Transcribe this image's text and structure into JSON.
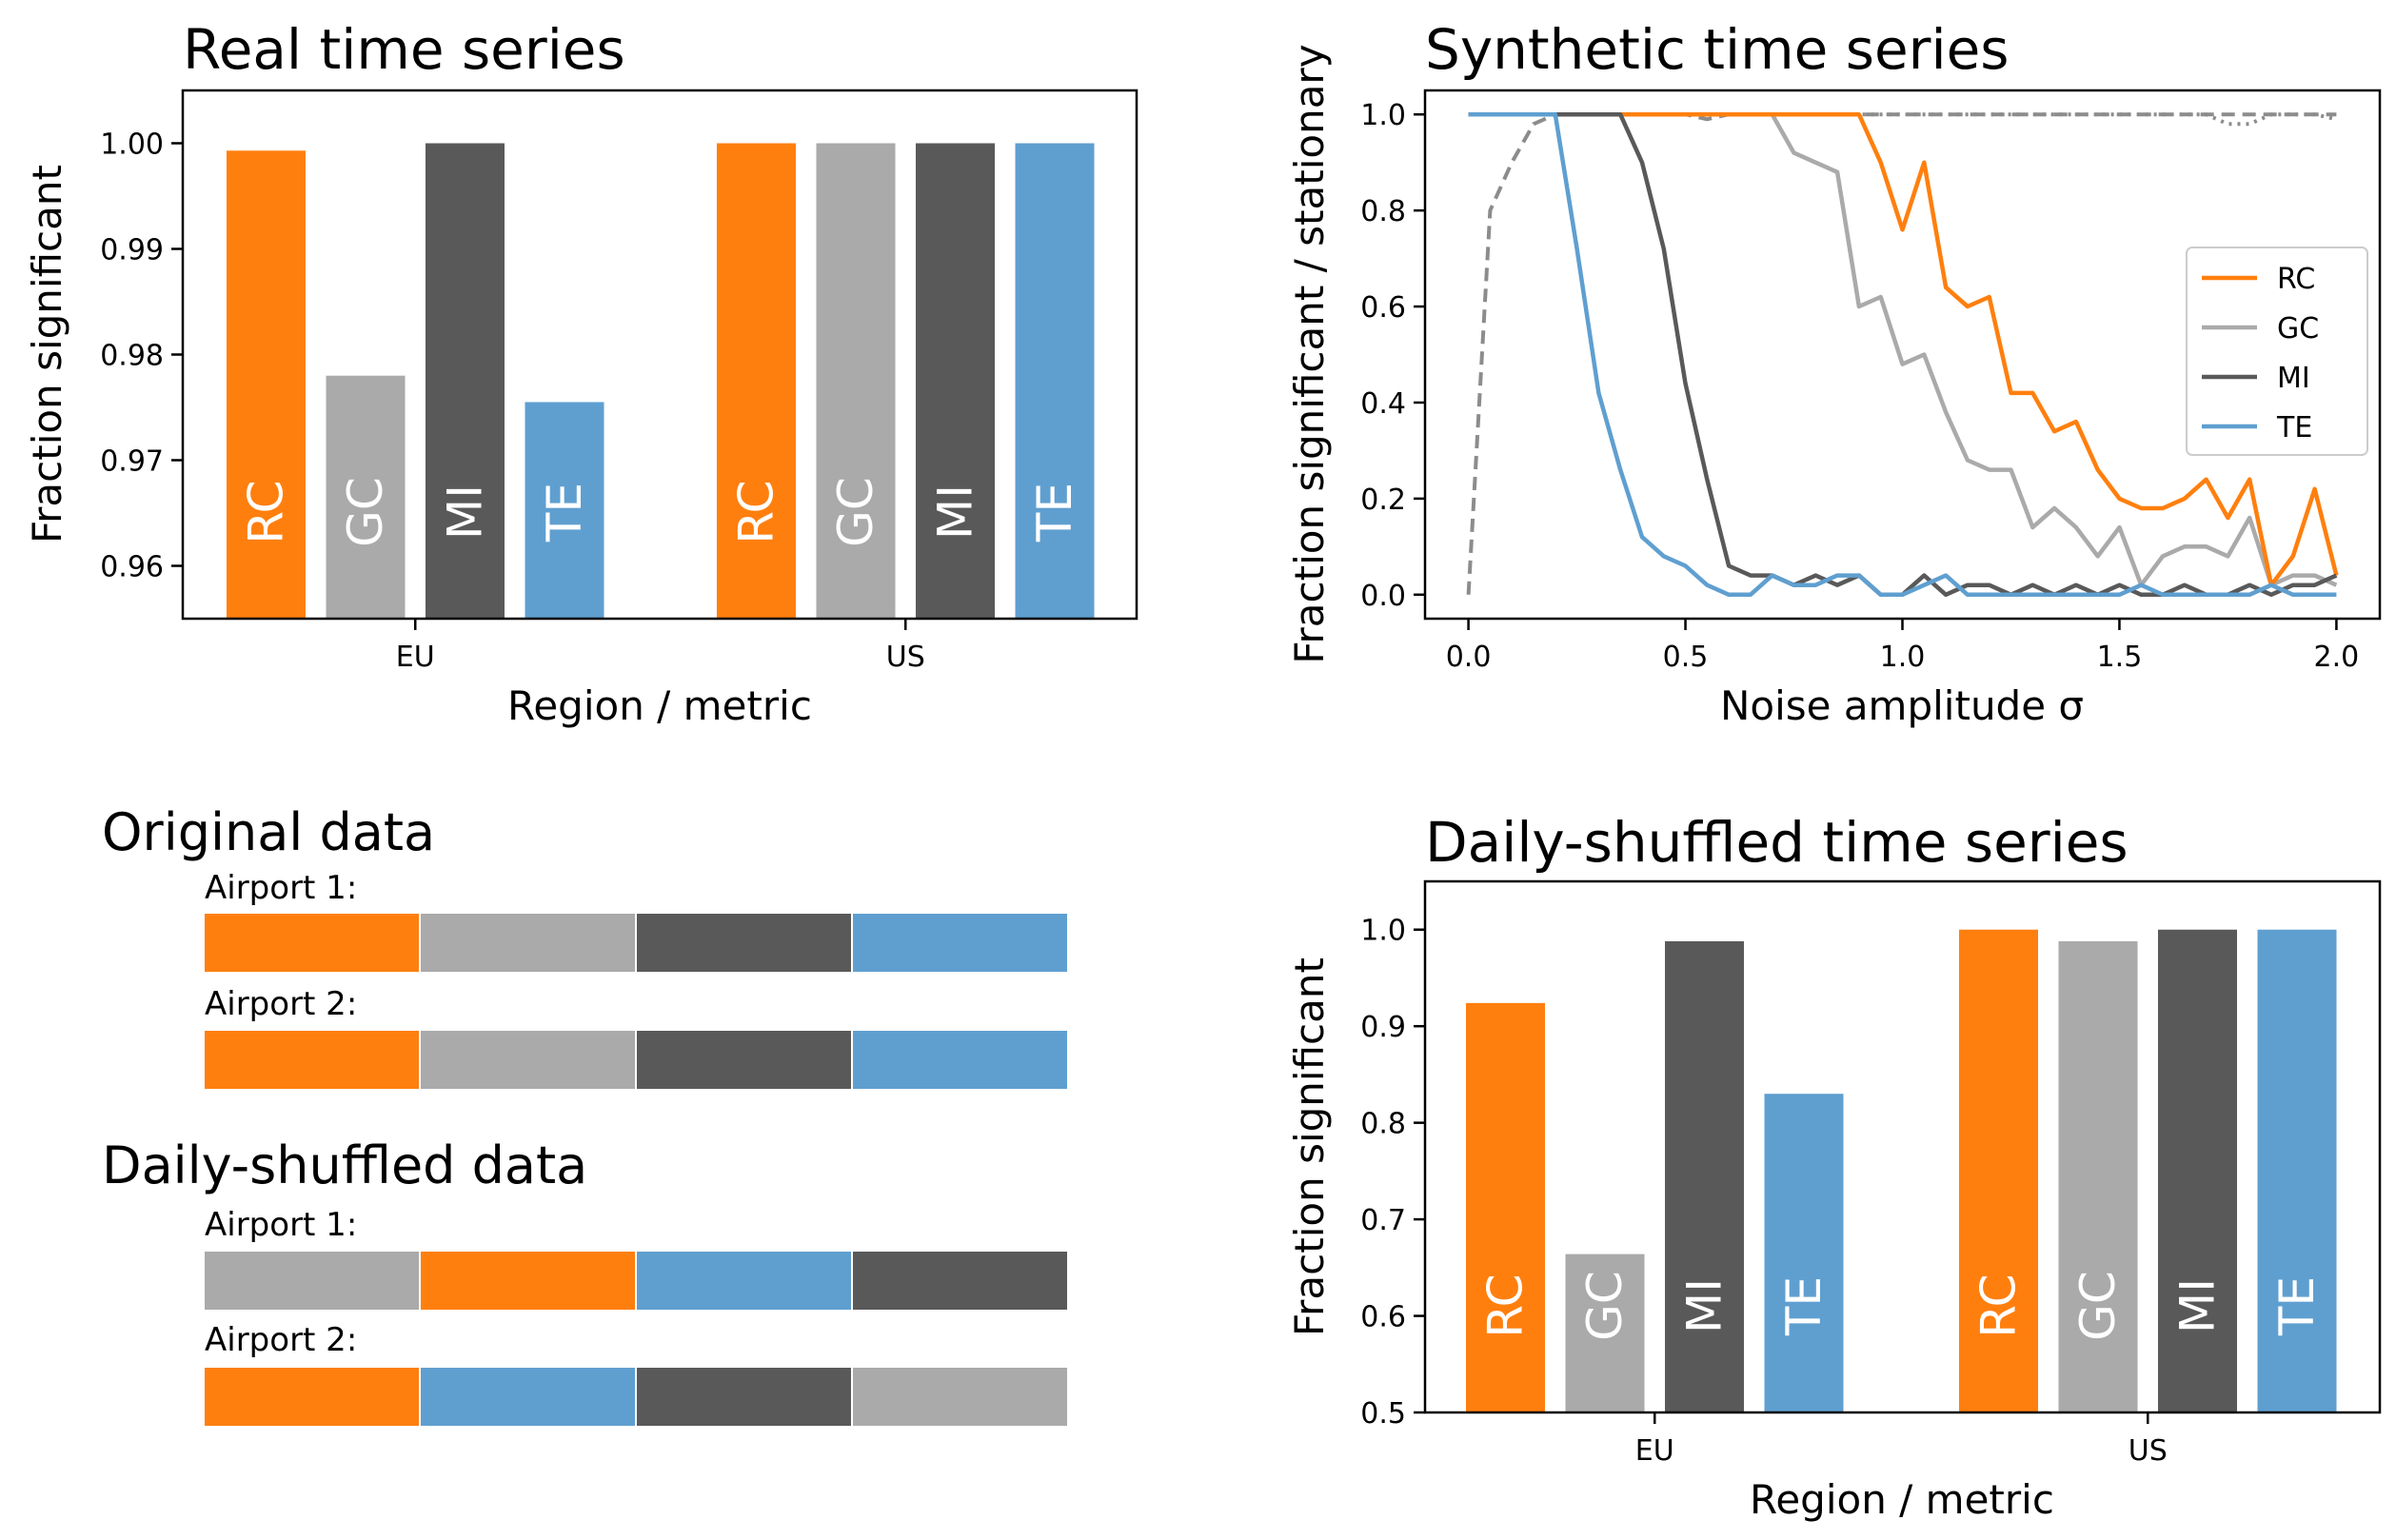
{
  "colors": {
    "RC": "#ff7f0e",
    "GC": "#aaaaaa",
    "MI": "#595959",
    "TE": "#5f9fd0"
  },
  "chart_data": [
    {
      "id": "real",
      "type": "bar",
      "title": "Real time series",
      "xlabel": "Region / metric",
      "ylabel": "Fraction significant",
      "ylim": [
        0.955,
        1.005
      ],
      "yticks": [
        0.96,
        0.97,
        0.98,
        0.99,
        1.0
      ],
      "ytick_labels": [
        "0.96",
        "0.97",
        "0.98",
        "0.99",
        "1.00"
      ],
      "categories": [
        "EU",
        "US"
      ],
      "series": [
        {
          "name": "RC",
          "values": [
            0.9993,
            1.0
          ]
        },
        {
          "name": "GC",
          "values": [
            0.978,
            1.0
          ]
        },
        {
          "name": "MI",
          "values": [
            1.0,
            1.0
          ]
        },
        {
          "name": "TE",
          "values": [
            0.9755,
            1.0
          ]
        }
      ]
    },
    {
      "id": "synthetic",
      "type": "line",
      "title": "Synthetic time series",
      "xlabel": "Noise amplitude σ",
      "ylabel": "Fraction significant / stationary",
      "xlim": [
        -0.1,
        2.1
      ],
      "ylim": [
        -0.05,
        1.05
      ],
      "xticks": [
        0.0,
        0.5,
        1.0,
        1.5,
        2.0
      ],
      "xtick_labels": [
        "0.0",
        "0.5",
        "1.0",
        "1.5",
        "2.0"
      ],
      "yticks": [
        0.0,
        0.2,
        0.4,
        0.6,
        0.8,
        1.0
      ],
      "ytick_labels": [
        "0.0",
        "0.2",
        "0.4",
        "0.6",
        "0.8",
        "1.0"
      ],
      "legend_position": "center-right",
      "x": [
        0.0,
        0.05,
        0.1,
        0.15,
        0.2,
        0.25,
        0.3,
        0.35,
        0.4,
        0.45,
        0.5,
        0.55,
        0.6,
        0.65,
        0.7,
        0.75,
        0.8,
        0.85,
        0.9,
        0.95,
        1.0,
        1.05,
        1.1,
        1.15,
        1.2,
        1.25,
        1.3,
        1.35,
        1.4,
        1.45,
        1.5,
        1.55,
        1.6,
        1.65,
        1.7,
        1.75,
        1.8,
        1.85,
        1.9,
        1.95,
        2.0
      ],
      "series": [
        {
          "name": "RC",
          "style": "solid",
          "values": [
            1,
            1,
            1,
            1,
            1,
            1,
            1,
            1,
            1,
            1,
            1,
            1,
            1,
            1,
            1,
            1,
            1,
            1,
            1,
            0.9,
            0.76,
            0.9,
            0.64,
            0.6,
            0.62,
            0.42,
            0.42,
            0.34,
            0.36,
            0.26,
            0.2,
            0.18,
            0.18,
            0.2,
            0.24,
            0.16,
            0.24,
            0.02,
            0.08,
            0.22,
            0.04
          ]
        },
        {
          "name": "GC",
          "style": "solid",
          "values": [
            1,
            1,
            1,
            1,
            1,
            1,
            1,
            1,
            1,
            1,
            1,
            1,
            1,
            1,
            1,
            0.92,
            0.9,
            0.88,
            0.6,
            0.62,
            0.48,
            0.5,
            0.38,
            0.28,
            0.26,
            0.26,
            0.14,
            0.18,
            0.14,
            0.08,
            0.14,
            0.02,
            0.08,
            0.1,
            0.1,
            0.08,
            0.16,
            0.02,
            0.04,
            0.04,
            0.02
          ]
        },
        {
          "name": "MI",
          "style": "solid",
          "values": [
            1,
            1,
            1,
            1,
            1,
            1,
            1,
            1,
            0.9,
            0.72,
            0.44,
            0.24,
            0.06,
            0.04,
            0.04,
            0.02,
            0.04,
            0.02,
            0.04,
            0.0,
            0.0,
            0.04,
            0.0,
            0.02,
            0.02,
            0.0,
            0.02,
            0.0,
            0.02,
            0.0,
            0.02,
            0.0,
            0.0,
            0.02,
            0.0,
            0.0,
            0.02,
            0.0,
            0.02,
            0.02,
            0.04
          ]
        },
        {
          "name": "TE",
          "style": "solid",
          "values": [
            1,
            1,
            1,
            1,
            1,
            0.72,
            0.42,
            0.26,
            0.12,
            0.08,
            0.06,
            0.02,
            0.0,
            0.0,
            0.04,
            0.02,
            0.02,
            0.04,
            0.04,
            0.0,
            0.0,
            0.02,
            0.04,
            0.0,
            0.0,
            0.0,
            0.0,
            0.0,
            0.0,
            0.0,
            0.0,
            0.02,
            0.0,
            0.0,
            0.0,
            0.0,
            0.0,
            0.02,
            0.0,
            0.0,
            0.0
          ]
        },
        {
          "name": "",
          "style": "dashed",
          "values": [
            0,
            0.8,
            0.9,
            0.98,
            1,
            1,
            1,
            1,
            1,
            1,
            1,
            0.99,
            1,
            1,
            1,
            1,
            1,
            1,
            1,
            1,
            1,
            1,
            1,
            1,
            1,
            1,
            1,
            1,
            1,
            1,
            1,
            1,
            1,
            1,
            1,
            1,
            1,
            1,
            1,
            1,
            1
          ]
        },
        {
          "name": "",
          "style": "dotted",
          "values": [
            1,
            1,
            1,
            1,
            1,
            1,
            1,
            1,
            1,
            1,
            1,
            1,
            1,
            1,
            1,
            1,
            1,
            1,
            1,
            1,
            1,
            1,
            1,
            1,
            1,
            1,
            1,
            1,
            1,
            1,
            1,
            1,
            1,
            1,
            1,
            0.98,
            0.98,
            1,
            1,
            1,
            0.99
          ]
        }
      ]
    },
    {
      "id": "shuffled",
      "type": "bar",
      "title": "Daily-shuffled time series",
      "xlabel": "Region / metric",
      "ylabel": "Fraction significant",
      "ylim": [
        0.5,
        1.05
      ],
      "yticks": [
        0.5,
        0.6,
        0.7,
        0.8,
        0.9,
        1.0
      ],
      "ytick_labels": [
        "0.5",
        "0.6",
        "0.7",
        "0.8",
        "0.9",
        "1.0"
      ],
      "categories": [
        "EU",
        "US"
      ],
      "series": [
        {
          "name": "RC",
          "values": [
            0.924,
            1.0
          ]
        },
        {
          "name": "GC",
          "values": [
            0.664,
            0.988
          ]
        },
        {
          "name": "MI",
          "values": [
            0.988,
            1.0
          ]
        },
        {
          "name": "TE",
          "values": [
            0.83,
            1.0
          ]
        }
      ]
    }
  ],
  "schematic": {
    "original": {
      "title": "Original data",
      "airports": [
        {
          "label": "Airport 1:",
          "segments": [
            "RC",
            "GC",
            "MI",
            "TE"
          ]
        },
        {
          "label": "Airport 2:",
          "segments": [
            "RC",
            "GC",
            "MI",
            "TE"
          ]
        }
      ]
    },
    "shuffled": {
      "title": "Daily-shuffled data",
      "airports": [
        {
          "label": "Airport 1:",
          "segments": [
            "GC",
            "RC",
            "TE",
            "MI"
          ]
        },
        {
          "label": "Airport 2:",
          "segments": [
            "RC",
            "TE",
            "MI",
            "GC"
          ]
        }
      ]
    }
  }
}
